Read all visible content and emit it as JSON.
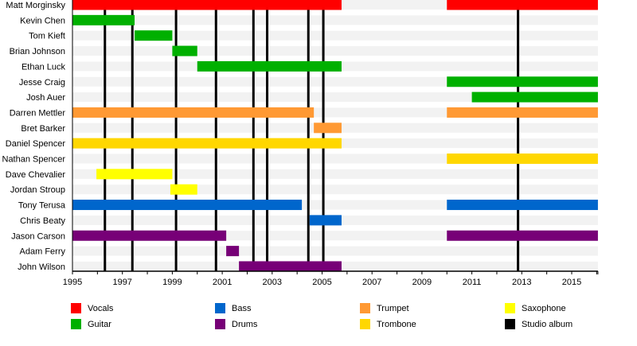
{
  "chart_data": {
    "type": "timeline",
    "title": "",
    "xlabel": "",
    "ylabel": "",
    "xlim": [
      1995,
      2016.05
    ],
    "x_ticks": [
      "1995",
      "1997",
      "1999",
      "2001",
      "2003",
      "2005",
      "2007",
      "2009",
      "2011",
      "2013",
      "2015"
    ],
    "colors": {
      "Vocals": "#ff0000",
      "Guitar": "#00b000",
      "Bass": "#0066cc",
      "Drums": "#770077",
      "Trumpet": "#ff9933",
      "Trombone": "#ffd700",
      "Saxophone": "#ffff00",
      "Studio album": "#000000"
    },
    "members": [
      {
        "name": "Matt Morginsky",
        "spans": [
          {
            "role": "Vocals",
            "start": 1995,
            "end": 2005.78
          },
          {
            "role": "Vocals",
            "start": 2010,
            "end": 2016.05
          }
        ]
      },
      {
        "name": "Kevin Chen",
        "spans": [
          {
            "role": "Guitar",
            "start": 1995,
            "end": 1997.49
          }
        ]
      },
      {
        "name": "Tom Kieft",
        "spans": [
          {
            "role": "Guitar",
            "start": 1997.49,
            "end": 1999.0
          }
        ]
      },
      {
        "name": "Brian Johnson",
        "spans": [
          {
            "role": "Guitar",
            "start": 1999.0,
            "end": 2000.0
          }
        ]
      },
      {
        "name": "Ethan Luck",
        "spans": [
          {
            "role": "Guitar",
            "start": 2000.0,
            "end": 2005.78
          }
        ]
      },
      {
        "name": "Jesse Craig",
        "spans": [
          {
            "role": "Guitar",
            "start": 2010,
            "end": 2016.05
          }
        ]
      },
      {
        "name": "Josh Auer",
        "spans": [
          {
            "role": "Guitar",
            "start": 2011,
            "end": 2016.05
          }
        ]
      },
      {
        "name": "Darren Mettler",
        "spans": [
          {
            "role": "Trumpet",
            "start": 1995,
            "end": 2004.67
          },
          {
            "role": "Trumpet",
            "start": 2010,
            "end": 2016.05
          }
        ]
      },
      {
        "name": "Bret Barker",
        "spans": [
          {
            "role": "Trumpet",
            "start": 2004.67,
            "end": 2005.78
          }
        ]
      },
      {
        "name": "Daniel Spencer",
        "spans": [
          {
            "role": "Trombone",
            "start": 1995,
            "end": 2005.78
          }
        ]
      },
      {
        "name": "Nathan Spencer",
        "spans": [
          {
            "role": "Trombone",
            "start": 2010,
            "end": 2016.05
          }
        ]
      },
      {
        "name": "Dave Chevalier",
        "spans": [
          {
            "role": "Saxophone",
            "start": 1995.96,
            "end": 1999.0
          }
        ]
      },
      {
        "name": "Jordan Stroup",
        "spans": [
          {
            "role": "Saxophone",
            "start": 1998.92,
            "end": 2000.0
          }
        ]
      },
      {
        "name": "Tony Terusa",
        "spans": [
          {
            "role": "Bass",
            "start": 1995,
            "end": 2004.19
          },
          {
            "role": "Bass",
            "start": 2010,
            "end": 2016.05
          }
        ]
      },
      {
        "name": "Chris Beaty",
        "spans": [
          {
            "role": "Bass",
            "start": 2004.5,
            "end": 2005.78
          }
        ]
      },
      {
        "name": "Jason Carson",
        "spans": [
          {
            "role": "Drums",
            "start": 1995,
            "end": 2001.16
          },
          {
            "role": "Drums",
            "start": 2010,
            "end": 2016.05
          }
        ]
      },
      {
        "name": "Adam Ferry",
        "spans": [
          {
            "role": "Drums",
            "start": 2001.16,
            "end": 2001.67
          }
        ]
      },
      {
        "name": "John Wilson",
        "spans": [
          {
            "role": "Drums",
            "start": 2001.67,
            "end": 2005.78
          }
        ]
      }
    ],
    "studio_albums": [
      1996.3,
      1997.4,
      1999.15,
      2000.75,
      2002.25,
      2002.8,
      2004.45,
      2005.05,
      2012.85
    ],
    "legend": {
      "placement": "bottom",
      "items": [
        "Vocals",
        "Guitar",
        "Bass",
        "Drums",
        "Trumpet",
        "Trombone",
        "Saxophone",
        "Studio album"
      ]
    }
  }
}
